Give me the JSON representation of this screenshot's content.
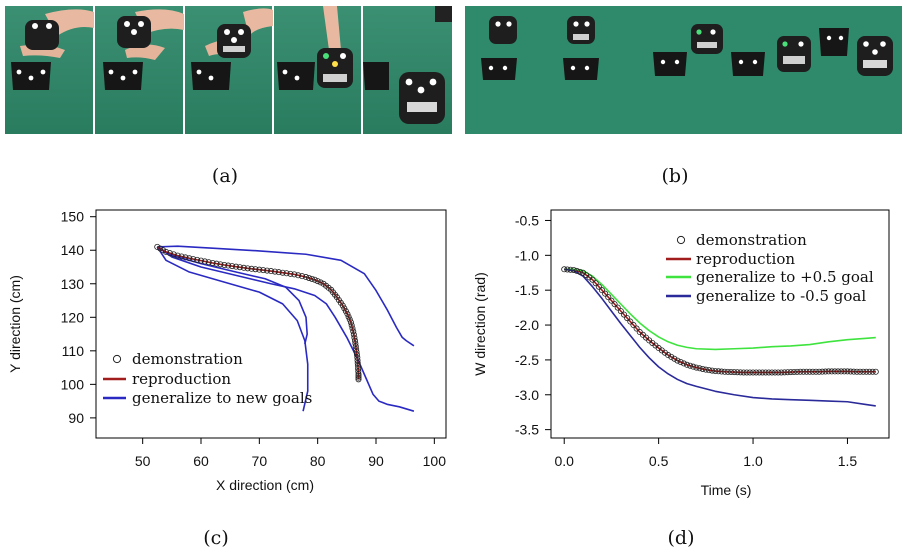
{
  "figure": {
    "captions": [
      "(a)",
      "(b)",
      "(c)",
      "(d)"
    ],
    "photo_colors": {
      "floor": "#2f8a6b",
      "floor_dark": "#267458",
      "robot": "#1e1e1e",
      "hand": "#e8b9a0"
    }
  },
  "chart_data": [
    {
      "type": "line",
      "panel": "(c)",
      "xlabel": "X direction (cm)",
      "ylabel": "Y direction (cm)",
      "xlim": [
        42,
        102
      ],
      "ylim": [
        84,
        152
      ],
      "xticks": [
        50,
        60,
        70,
        80,
        90,
        100
      ],
      "yticks": [
        90,
        100,
        110,
        120,
        130,
        140,
        150
      ],
      "legend": {
        "placement": "bottom-left",
        "entries": [
          "demonstration",
          "reproduction",
          "generalize to new goals"
        ]
      },
      "colors": {
        "demonstration": "#222222",
        "reproduction": "#a11d1d",
        "generalize": "#2a2ac2"
      },
      "series": [
        {
          "name": "demonstration",
          "style": "markers",
          "x": [
            52.5,
            54,
            56,
            58,
            60,
            62,
            64,
            66,
            68,
            70,
            72,
            74,
            76,
            78,
            79.5,
            81,
            82.3,
            83.3,
            84.3,
            85.1,
            85.7,
            86.1,
            86.4,
            86.6,
            86.8,
            86.9,
            87,
            87
          ],
          "y": [
            141,
            139.5,
            138.4,
            137.6,
            136.9,
            136.2,
            135.6,
            135.1,
            134.6,
            134.2,
            133.8,
            133.3,
            132.8,
            132,
            131.2,
            130,
            128.2,
            126,
            123.5,
            121,
            118.5,
            115.8,
            113,
            110.5,
            108,
            105.5,
            103,
            101.5
          ]
        },
        {
          "name": "reproduction",
          "style": "line",
          "x": [
            52.5,
            54,
            56,
            58,
            60,
            62,
            64,
            66,
            68,
            70,
            72,
            74,
            76,
            78,
            79.5,
            81,
            82.3,
            83.3,
            84.3,
            85.1,
            85.7,
            86.1,
            86.4,
            86.6,
            86.8,
            86.9,
            87,
            87
          ],
          "y": [
            141,
            139.5,
            138.4,
            137.6,
            136.9,
            136.2,
            135.6,
            135.1,
            134.6,
            134.2,
            133.8,
            133.3,
            132.8,
            132,
            131.2,
            130,
            128.2,
            126,
            123.5,
            121,
            118.5,
            115.8,
            113,
            110.5,
            108,
            105.5,
            103,
            101.5
          ]
        },
        {
          "name": "generalize to new goals",
          "style": "line",
          "x": [
            52.5,
            56,
            62,
            70,
            78,
            84,
            88,
            90,
            92,
            93.5,
            94.5,
            95.2,
            96.5
          ],
          "y": [
            141,
            141.2,
            140.6,
            139.8,
            138.8,
            137,
            133,
            128,
            122,
            117,
            114,
            113,
            111.5
          ]
        },
        {
          "name": "",
          "style": "line",
          "x": [
            52.5,
            55,
            60,
            66,
            72,
            76,
            79.5,
            81.5,
            83,
            85,
            87,
            88.5,
            89.5,
            90.5,
            92,
            94,
            96.5
          ],
          "y": [
            141,
            138,
            135,
            132.5,
            130,
            128.5,
            126.5,
            124,
            120,
            114,
            107,
            101,
            97,
            95,
            94,
            93.3,
            92
          ]
        },
        {
          "name": "",
          "style": "line",
          "x": [
            52.5,
            54,
            58,
            64,
            70,
            74,
            76.5,
            77.8,
            78.3,
            78.3,
            77.5
          ],
          "y": [
            141,
            137,
            133.5,
            130.5,
            127.5,
            124,
            119,
            113,
            106,
            98,
            92
          ]
        },
        {
          "name": "",
          "style": "line",
          "x": [
            52.5,
            55,
            60,
            66,
            71,
            74.5,
            76.8,
            78,
            78.2,
            77.8
          ],
          "y": [
            141,
            138.5,
            136,
            133.5,
            131.5,
            129,
            125,
            120,
            115,
            112
          ]
        }
      ]
    },
    {
      "type": "line",
      "panel": "(d)",
      "xlabel": "Time (s)",
      "ylabel": "W direction (rad)",
      "xlim": [
        -0.07,
        1.72
      ],
      "ylim": [
        -3.62,
        -0.35
      ],
      "xticks": [
        0.0,
        0.5,
        1.0,
        1.5
      ],
      "xtick_labels": [
        "0.0",
        "0.5",
        "1.0",
        "1.5"
      ],
      "yticks": [
        -0.5,
        -1.0,
        -1.5,
        -2.0,
        -2.5,
        -3.0,
        -3.5
      ],
      "ytick_labels": [
        "-0.5",
        "-1.0",
        "-1.5",
        "-2.0",
        "-2.5",
        "-3.0",
        "-3.5"
      ],
      "legend": {
        "placement": "top-right",
        "entries": [
          "demonstration",
          "reproduction",
          "generalize to +0.5 goal",
          "generalize to -0.5 goal"
        ]
      },
      "colors": {
        "demonstration": "#222222",
        "reproduction": "#a11d1d",
        "plus": "#3ee33e",
        "minus": "#2a2a9a"
      },
      "series": [
        {
          "name": "demonstration",
          "style": "markers",
          "x": [
            0,
            0.05,
            0.1,
            0.15,
            0.2,
            0.25,
            0.3,
            0.35,
            0.4,
            0.45,
            0.5,
            0.55,
            0.6,
            0.65,
            0.7,
            0.75,
            0.8,
            0.85,
            0.9,
            0.95,
            1.0,
            1.05,
            1.1,
            1.15,
            1.2,
            1.25,
            1.3,
            1.35,
            1.4,
            1.45,
            1.5,
            1.55,
            1.6,
            1.65
          ],
          "y": [
            -1.2,
            -1.21,
            -1.25,
            -1.35,
            -1.5,
            -1.65,
            -1.8,
            -1.95,
            -2.1,
            -2.22,
            -2.33,
            -2.43,
            -2.51,
            -2.57,
            -2.61,
            -2.64,
            -2.66,
            -2.67,
            -2.675,
            -2.68,
            -2.68,
            -2.68,
            -2.68,
            -2.68,
            -2.675,
            -2.67,
            -2.67,
            -2.67,
            -2.665,
            -2.665,
            -2.665,
            -2.67,
            -2.67,
            -2.67
          ]
        },
        {
          "name": "reproduction",
          "style": "line",
          "x": [
            0,
            0.05,
            0.1,
            0.15,
            0.2,
            0.25,
            0.3,
            0.35,
            0.4,
            0.45,
            0.5,
            0.55,
            0.6,
            0.65,
            0.7,
            0.75,
            0.8,
            0.85,
            0.9,
            0.95,
            1.0,
            1.05,
            1.1,
            1.15,
            1.2,
            1.25,
            1.3,
            1.35,
            1.4,
            1.45,
            1.5,
            1.55,
            1.6,
            1.65
          ],
          "y": [
            -1.2,
            -1.21,
            -1.25,
            -1.35,
            -1.5,
            -1.65,
            -1.8,
            -1.95,
            -2.1,
            -2.22,
            -2.33,
            -2.43,
            -2.51,
            -2.57,
            -2.61,
            -2.64,
            -2.66,
            -2.67,
            -2.675,
            -2.68,
            -2.68,
            -2.68,
            -2.68,
            -2.68,
            -2.675,
            -2.67,
            -2.67,
            -2.67,
            -2.665,
            -2.665,
            -2.665,
            -2.67,
            -2.67,
            -2.67
          ]
        },
        {
          "name": "generalize to +0.5 goal",
          "style": "line",
          "x": [
            0,
            0.05,
            0.1,
            0.15,
            0.2,
            0.25,
            0.3,
            0.35,
            0.4,
            0.45,
            0.5,
            0.55,
            0.6,
            0.65,
            0.7,
            0.8,
            0.9,
            1.0,
            1.1,
            1.2,
            1.3,
            1.4,
            1.5,
            1.6,
            1.65
          ],
          "y": [
            -1.2,
            -1.2,
            -1.22,
            -1.3,
            -1.42,
            -1.56,
            -1.7,
            -1.84,
            -1.97,
            -2.08,
            -2.17,
            -2.24,
            -2.29,
            -2.32,
            -2.34,
            -2.35,
            -2.34,
            -2.33,
            -2.31,
            -2.3,
            -2.28,
            -2.24,
            -2.21,
            -2.19,
            -2.18
          ]
        },
        {
          "name": "generalize to -0.5 goal",
          "style": "line",
          "x": [
            0,
            0.05,
            0.1,
            0.15,
            0.2,
            0.25,
            0.3,
            0.35,
            0.4,
            0.45,
            0.5,
            0.55,
            0.6,
            0.65,
            0.7,
            0.8,
            0.9,
            1.0,
            1.1,
            1.2,
            1.3,
            1.4,
            1.5,
            1.6,
            1.65
          ],
          "y": [
            -1.2,
            -1.22,
            -1.3,
            -1.45,
            -1.62,
            -1.8,
            -1.98,
            -2.15,
            -2.32,
            -2.47,
            -2.6,
            -2.7,
            -2.78,
            -2.84,
            -2.88,
            -2.95,
            -3.0,
            -3.04,
            -3.06,
            -3.07,
            -3.08,
            -3.09,
            -3.1,
            -3.14,
            -3.16
          ]
        }
      ]
    }
  ]
}
